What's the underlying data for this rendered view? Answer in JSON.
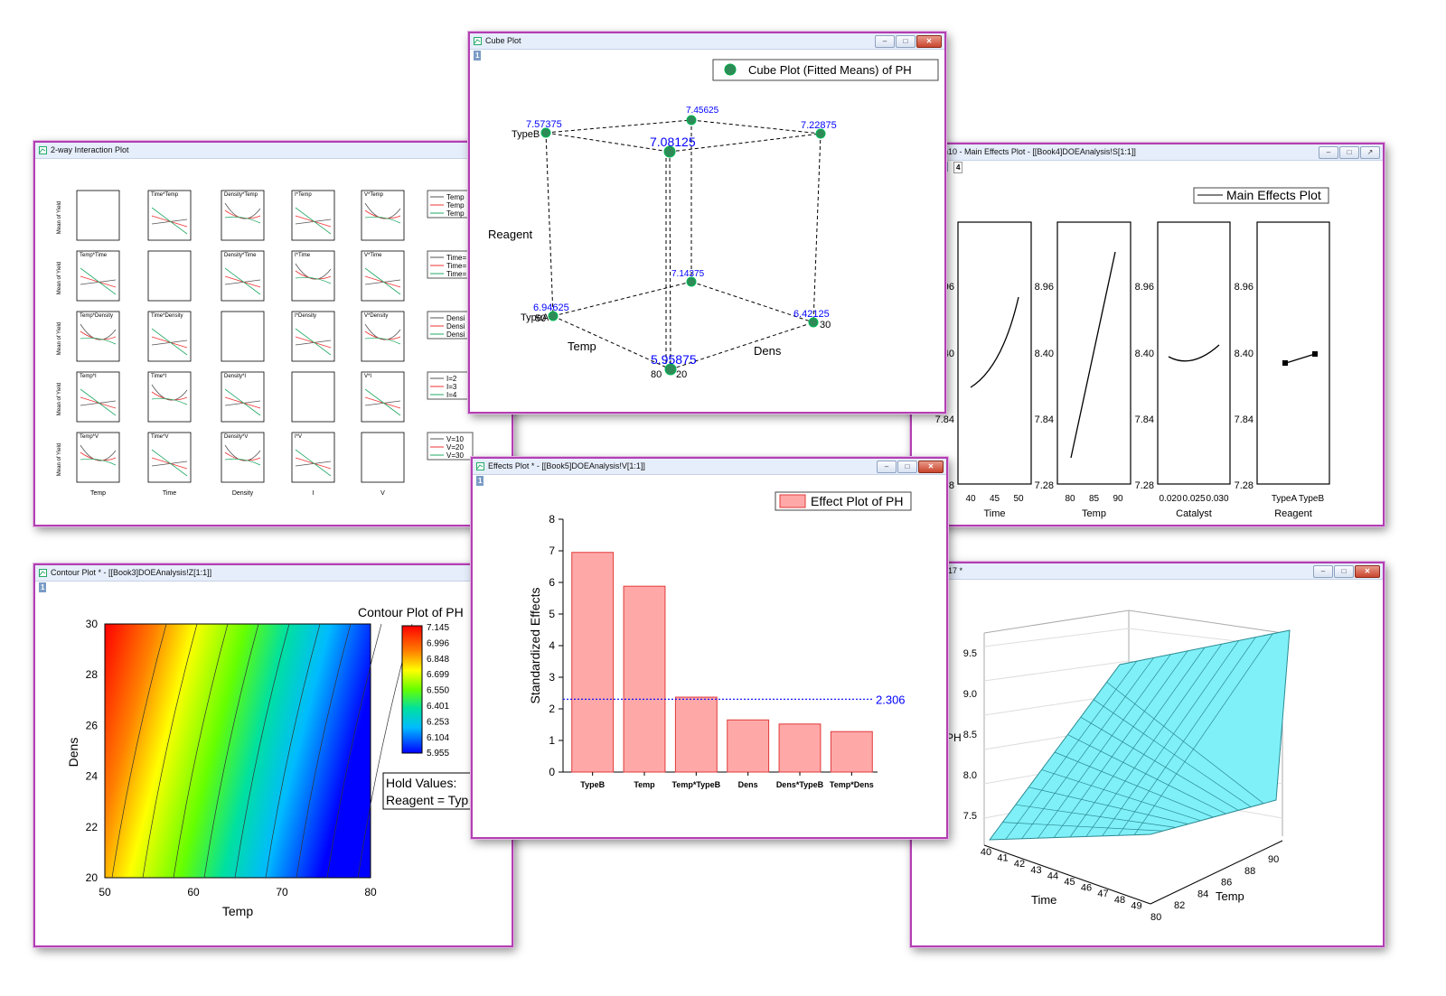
{
  "windows": {
    "interaction": {
      "title": "2-way Interaction Plot",
      "col_labels": [
        "Temp",
        "Time",
        "Density",
        "I",
        "V"
      ],
      "row_ylabel": "Mean of Yield",
      "legend_groups": [
        [
          "Temp",
          "Temp",
          "Temp"
        ],
        [
          "Time=",
          "Time=",
          "Time="
        ],
        [
          "Densi",
          "Densi",
          "Densi"
        ],
        [
          "I=2",
          "I=3",
          "I=4"
        ],
        [
          "V=10",
          "V=20",
          "V=30"
        ]
      ],
      "panel_titles": [
        [
          "",
          "Time*Temp",
          "Density*Temp",
          "I*Temp",
          "V*Temp"
        ],
        [
          "Temp*Time",
          "",
          "Density*Time",
          "I*Time",
          "V*Time"
        ],
        [
          "Temp*Density",
          "Time*Density",
          "",
          "I*Density",
          "V*Density"
        ],
        [
          "Temp*I",
          "Time*I",
          "Density*I",
          "",
          "V*I"
        ],
        [
          "Temp*V",
          "Time*V",
          "Density*V",
          "I*V",
          ""
        ]
      ]
    },
    "cube": {
      "title": "Cube Plot",
      "layer": "1",
      "legend": "Cube Plot (Fitted Means) of PH",
      "values": [
        "7.57375",
        "7.45625",
        "7.22875",
        "7.08125",
        "6.94625",
        "7.14375",
        "6.42125",
        "5.95875"
      ],
      "axis_reagent": "Reagent",
      "axis_temp": "Temp",
      "axis_dens": "Dens",
      "lbl_typeb": "TypeB",
      "lbl_typea": "TypeA",
      "lbl_50": "50",
      "lbl_80": "80",
      "lbl_20": "20",
      "lbl_30": "30"
    },
    "main_effects": {
      "title": "ph10 - Main Effects Plot - [[Book4]DOEAnalysis!S[1:1]]",
      "layer3": "3",
      "layer4": "4",
      "legend": "Main Effects Plot",
      "y_ticks": [
        "8.96",
        "8.40",
        "7.84",
        "7.28"
      ],
      "panels": [
        {
          "xlabel": "Time",
          "xticks": [
            "40",
            "45",
            "50"
          ]
        },
        {
          "xlabel": "Temp",
          "xticks": [
            "80",
            "85",
            "90"
          ]
        },
        {
          "xlabel": "Catalyst",
          "xticks": [
            "0.020",
            "0.025",
            "0.030"
          ]
        },
        {
          "xlabel": "Reagent",
          "xticks": [
            "TypeA",
            "TypeB"
          ]
        }
      ]
    },
    "contour": {
      "title": "Contour Plot * - [[Book3]DOEAnalysis!Z[1:1]]",
      "layer": "1",
      "plot_title": "Contour Plot of PH",
      "xlabel": "Temp",
      "ylabel": "Dens",
      "xticks": [
        "50",
        "60",
        "70",
        "80"
      ],
      "yticks": [
        "30",
        "28",
        "26",
        "24",
        "22",
        "20"
      ],
      "colorbar": [
        "7.145",
        "6.996",
        "6.848",
        "6.699",
        "6.550",
        "6.401",
        "6.253",
        "6.104",
        "5.955"
      ],
      "hold_title": "Hold Values:",
      "hold_value": "Reagent = Typ"
    },
    "effects": {
      "title": "Effects Plot * - [[Book5]DOEAnalysis!V[1:1]]",
      "layer": "1",
      "ref_label": "2.306"
    },
    "surface": {
      "title": "ph17 *",
      "layer": "1",
      "z_label": "PH",
      "z_ticks": [
        "9.5",
        "9.0",
        "8.5",
        "8.0",
        "7.5"
      ],
      "x_label": "Time",
      "x_ticks": [
        "40",
        "41",
        "42",
        "43",
        "44",
        "45",
        "46",
        "47",
        "48",
        "49"
      ],
      "y_label": "Temp",
      "y_ticks": [
        "80",
        "82",
        "84",
        "86",
        "88",
        "90"
      ]
    }
  },
  "colors": {
    "window_border": "#b23fb2",
    "bar_fill": "#ffa8a8",
    "bar_stroke": "#e03a3a",
    "label_blue": "#0000ff",
    "surface_fill": "#80f0f8"
  },
  "chart_data": [
    {
      "type": "bar",
      "title": "",
      "legend": "Effect Plot of PH",
      "categories": [
        "TypeB",
        "Temp",
        "Temp*TypeB",
        "Dens",
        "Dens*TypeB",
        "Temp*Dens"
      ],
      "values": [
        6.95,
        5.88,
        2.37,
        1.65,
        1.52,
        1.28
      ],
      "reference_line": 2.306,
      "ylabel": "Standardized Effects",
      "xlabel": "",
      "ylim": [
        0,
        8
      ],
      "yticks": [
        0,
        1,
        2,
        3,
        4,
        5,
        6,
        7,
        8
      ]
    }
  ]
}
